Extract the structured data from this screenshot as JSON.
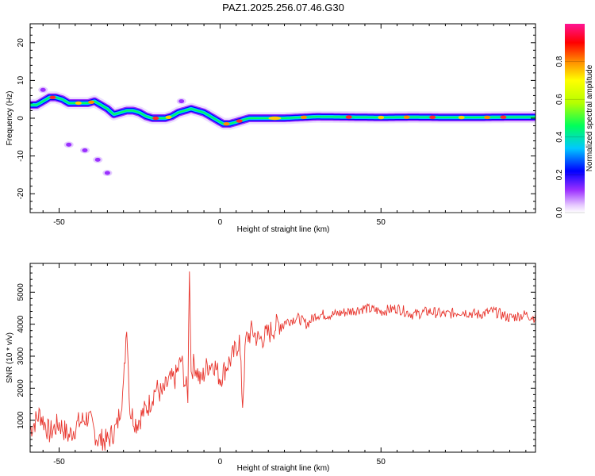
{
  "figure": {
    "title": "PAZ1.2025.256.07.46.G30"
  },
  "chart_data": [
    {
      "type": "heatmap",
      "xlabel": "Height of straight line (km)",
      "ylabel": "Frequency (Hz)",
      "xlim": [
        -59,
        98
      ],
      "ylim": [
        -25,
        25
      ],
      "x_ticks": [
        -50,
        0,
        50
      ],
      "y_ticks": [
        20,
        10,
        0,
        -10,
        -20
      ],
      "colorbar": {
        "label": "Normalized spectral amplitude",
        "range": [
          0,
          1
        ],
        "ticks": [
          "0.0",
          "0.2",
          "0.4",
          "0.6",
          "0.8"
        ],
        "colors": [
          "#ffffff",
          "#e6c8ff",
          "#9b30ff",
          "#0000ff",
          "#00c8ff",
          "#00ff5a",
          "#b4ff00",
          "#ffff00",
          "#ff8c00",
          "#ff0000",
          "#ff1493"
        ]
      },
      "ridge": {
        "description_points_x": [
          -57,
          -55,
          -53,
          -51,
          -49,
          -47,
          -45,
          -43,
          -41,
          -39,
          -37,
          -35,
          -33,
          -31,
          -29,
          -27,
          -25,
          -23,
          -21,
          -19,
          -17,
          -15,
          -13,
          -11,
          -9,
          -7,
          -5,
          -3,
          -1,
          1,
          3,
          5,
          7,
          9,
          11,
          13,
          15,
          17,
          20,
          25,
          30,
          40,
          50,
          60,
          70,
          80,
          90,
          98
        ],
        "frequency_hz": [
          3.5,
          4.5,
          5.5,
          5.5,
          5,
          4,
          4,
          4,
          4,
          4.5,
          3.5,
          2.5,
          1,
          1.5,
          2,
          2,
          1.5,
          0.5,
          0,
          0,
          0,
          0.5,
          1.5,
          2,
          2.5,
          2,
          1.5,
          0.5,
          -0.5,
          -1.5,
          -1.5,
          -1,
          -0.5,
          0,
          0,
          0,
          0,
          0,
          0,
          0.2,
          0.4,
          0.3,
          0.2,
          0.3,
          0.2,
          0.2,
          0.3,
          0.3
        ]
      },
      "blobs": [
        {
          "x": -55,
          "y": 7.5
        },
        {
          "x": -12,
          "y": 4.5
        },
        {
          "x": -38,
          "y": -11
        },
        {
          "x": -35,
          "y": -14.5
        },
        {
          "x": -47,
          "y": -7
        },
        {
          "x": -42,
          "y": -8.5
        }
      ]
    },
    {
      "type": "line",
      "xlabel": "Height of straight line (km)",
      "ylabel": "SNR (10 * v/v)",
      "xlim": [
        -59,
        98
      ],
      "ylim": [
        0,
        5900
      ],
      "x_ticks": [
        -50,
        0,
        50
      ],
      "y_ticks": [
        1000,
        2000,
        3000,
        4000,
        5000
      ],
      "color": "#e8362e",
      "series": [
        {
          "x": [
            -59,
            -56,
            -53,
            -50,
            -47,
            -44,
            -41,
            -38,
            -35,
            -32,
            -30,
            -29,
            -28,
            -26,
            -24,
            -22,
            -20,
            -18,
            -16,
            -14,
            -12,
            -11,
            -10,
            -9.5,
            -9,
            -8,
            -6,
            -4,
            -2,
            0,
            2,
            4,
            6,
            7,
            8,
            10,
            12,
            15,
            18,
            21,
            24,
            27,
            30,
            35,
            40,
            45,
            50,
            55,
            60,
            65,
            70,
            75,
            80,
            85,
            90,
            95,
            98
          ],
          "y": [
            700,
            1200,
            600,
            900,
            500,
            900,
            1100,
            400,
            350,
            800,
            2000,
            4100,
            1300,
            900,
            1200,
            1500,
            2000,
            1800,
            2200,
            2300,
            2900,
            2200,
            1800,
            5900,
            2500,
            2800,
            2200,
            2700,
            2800,
            2300,
            2700,
            3000,
            3500,
            1500,
            3500,
            3800,
            3500,
            3700,
            4000,
            4100,
            4200,
            4000,
            4300,
            4300,
            4400,
            4500,
            4400,
            4500,
            4300,
            4400,
            4300,
            4400,
            4300,
            4400,
            4200,
            4300,
            4200
          ]
        }
      ]
    }
  ]
}
